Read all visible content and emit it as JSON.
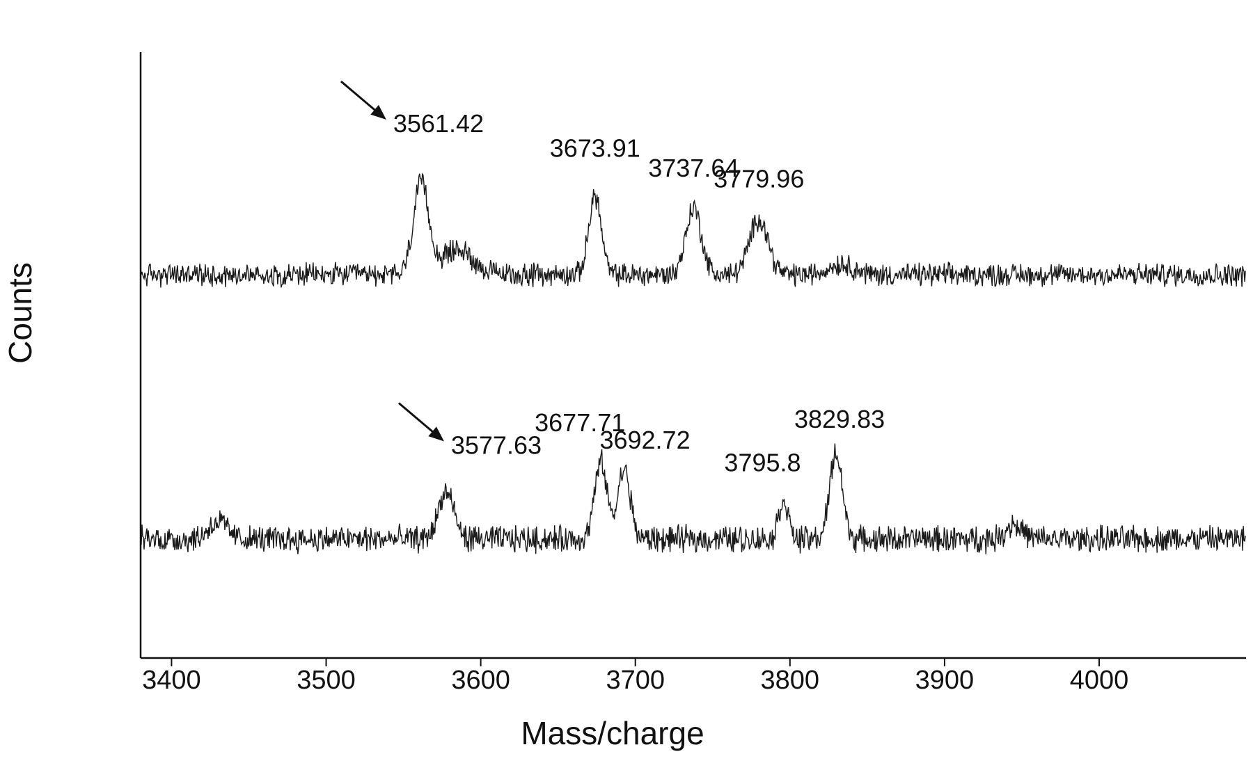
{
  "chart_data": {
    "type": "line",
    "title": "",
    "xlabel": "Mass/charge",
    "ylabel": "Counts",
    "xlim": [
      3380,
      4095
    ],
    "x_ticks": [
      3400,
      3500,
      3600,
      3700,
      3800,
      3900,
      4000
    ],
    "y_axis_ticks": "none",
    "grid": false,
    "legend": "none",
    "line_color": "#1a1a1a",
    "series": [
      {
        "values_description": "upper spectrum",
        "baseline_counts": 30,
        "noise_counts": 5,
        "peaks": [
          {
            "x": 3561.42,
            "height": 50,
            "width": 5,
            "label": "3561.42",
            "arrow": true
          },
          {
            "x": 3585,
            "height": 14,
            "width": 10,
            "label": "",
            "arrow": false
          },
          {
            "x": 3673.91,
            "height": 44,
            "width": 4,
            "label": "3673.91",
            "arrow": false
          },
          {
            "x": 3737.64,
            "height": 37,
            "width": 5,
            "label": "3737.64",
            "arrow": false
          },
          {
            "x": 3779.96,
            "height": 31,
            "width": 6,
            "label": "3779.96",
            "arrow": false
          },
          {
            "x": 3833,
            "height": 6,
            "width": 8,
            "label": "",
            "arrow": false
          }
        ]
      },
      {
        "values_description": "lower spectrum",
        "baseline_counts": 28,
        "noise_counts": 6,
        "peaks": [
          {
            "x": 3577.63,
            "height": 27,
            "width": 5,
            "label": "3577.63",
            "arrow": true
          },
          {
            "x": 3677.71,
            "height": 44,
            "width": 4,
            "label": "3677.71",
            "arrow": false
          },
          {
            "x": 3692.72,
            "height": 40,
            "width": 4,
            "label": "3692.72",
            "arrow": false
          },
          {
            "x": 3795.8,
            "height": 23,
            "width": 3,
            "label": "3795.8",
            "arrow": false
          },
          {
            "x": 3829.83,
            "height": 50,
            "width": 4,
            "label": "3829.83",
            "arrow": false
          },
          {
            "x": 3430,
            "height": 10,
            "width": 6,
            "label": "",
            "arrow": false
          },
          {
            "x": 3945,
            "height": 9,
            "width": 5,
            "label": "",
            "arrow": false
          }
        ]
      }
    ]
  }
}
